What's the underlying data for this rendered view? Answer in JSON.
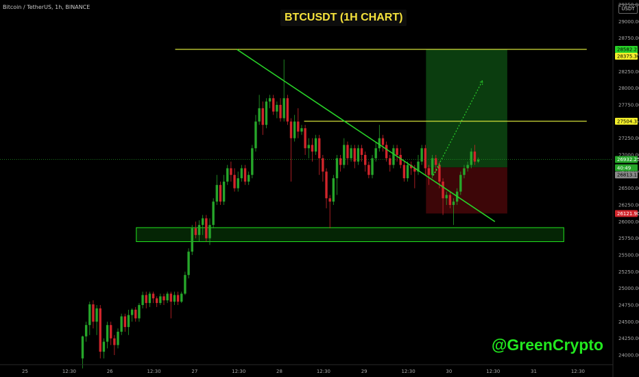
{
  "symbol_line": "Bitcoin / TetherUS, 1h, BINANCE",
  "title": "BTCUSDT (1H CHART)",
  "watermark": "@GreenCrypto",
  "currency": "USDT",
  "colors": {
    "up": "#26a62a",
    "down": "#d1252b",
    "trendline": "#28d228",
    "level": "#d6e23a",
    "zone": "#22e81f",
    "target_box": "#0b3d0f",
    "stop_box": "#3d0608",
    "projection": "#2bd72b"
  },
  "chart_data": {
    "type": "candlestick",
    "title": "BTCUSDT (1H CHART)",
    "y_axis": {
      "min": 23850,
      "max": 29250,
      "ticks": [
        24000,
        24250,
        24500,
        24750,
        25000,
        25250,
        25500,
        25750,
        26000,
        26250,
        26500,
        26750,
        27000,
        27250,
        27500,
        27750,
        28000,
        28250,
        28500,
        28750,
        29000,
        29250
      ],
      "tick_labels": [
        "24000.00",
        "24250.00",
        "24500.00",
        "24750.00",
        "25000.00",
        "25250.00",
        "25500.00",
        "25750.00",
        "26000.00",
        "26250.00",
        "26500.00",
        "26750.00",
        "27000.00",
        "27250.00",
        "27500.00",
        "27750.00",
        "28000.00",
        "28250.00",
        "28500.00",
        "28750.00",
        "29000.00",
        "29250.00"
      ]
    },
    "x_axis": {
      "min_hour": -12,
      "max_hour": 159,
      "ticks": [
        {
          "hour": 0,
          "label": "25"
        },
        {
          "hour": 12.5,
          "label": "12:30"
        },
        {
          "hour": 24,
          "label": "26"
        },
        {
          "hour": 36.5,
          "label": "12:30"
        },
        {
          "hour": 48,
          "label": "27"
        },
        {
          "hour": 60.5,
          "label": "12:30"
        },
        {
          "hour": 72,
          "label": "28"
        },
        {
          "hour": 84.5,
          "label": "12:30"
        },
        {
          "hour": 96,
          "label": "29"
        },
        {
          "hour": 108.5,
          "label": "12:30"
        },
        {
          "hour": 120,
          "label": "30"
        },
        {
          "hour": 132.5,
          "label": "12:30"
        },
        {
          "hour": 144,
          "label": "31"
        },
        {
          "hour": 156.5,
          "label": "12:30"
        }
      ]
    },
    "price_tags": [
      {
        "label": "28582.21",
        "price": 28582.21,
        "bg": "#28d228",
        "fg": "#000000"
      },
      {
        "label": "28375.30",
        "price": 28480,
        "bg": "#f3ef2b",
        "fg": "#000000"
      },
      {
        "label": "27504.35",
        "price": 27504.35,
        "bg": "#f3ef2b",
        "fg": "#000000"
      },
      {
        "label": "26932.25",
        "price": 26932.25,
        "bg": "#26a62a",
        "fg": "#ffffff"
      },
      {
        "label": "40:49",
        "price": 26807,
        "bg": "#26a62a",
        "fg": "#ffffff"
      },
      {
        "label": "26813.13",
        "price": 26700,
        "bg": "#8a8a8a",
        "fg": "#000000"
      },
      {
        "label": "26121.90",
        "price": 26121.9,
        "bg": "#d1252b",
        "fg": "#ffffff"
      }
    ],
    "levels": [
      {
        "price": 28582.21,
        "from_hour": 42.5,
        "to_hour": 159
      },
      {
        "price": 27504.35,
        "from_hour": 79,
        "to_hour": 159
      }
    ],
    "current_price": 26932.25,
    "trendline": {
      "from": {
        "hour": 60,
        "price": 28580
      },
      "to": {
        "hour": 133,
        "price": 26000
      }
    },
    "support_zone": {
      "from_hour": 31.5,
      "to_hour": 152.5,
      "low": 25700,
      "high": 25910
    },
    "target_box": {
      "from_hour": 113.5,
      "to_hour": 136.5,
      "low": 26813.13,
      "high": 28582.21
    },
    "stop_box": {
      "from_hour": 113.5,
      "to_hour": 136.5,
      "low": 26121.9,
      "high": 26813.13
    },
    "projection": {
      "from": {
        "hour": 115.5,
        "price": 26690
      },
      "via": {
        "hour": 117.5,
        "price": 26850
      },
      "to": {
        "hour": 129.5,
        "price": 28115
      }
    },
    "candles": [
      [
        16.3,
        23950,
        24280,
        23800,
        24290
      ],
      [
        17.3,
        24280,
        24450,
        24200,
        24500
      ],
      [
        18.3,
        24450,
        24760,
        24300,
        24800
      ],
      [
        19.3,
        24760,
        24500,
        24400,
        24820
      ],
      [
        20.3,
        24500,
        24700,
        24300,
        24750
      ],
      [
        21.3,
        24700,
        24050,
        23950,
        24750
      ],
      [
        22.3,
        24050,
        24200,
        23950,
        24250
      ],
      [
        23.3,
        24200,
        24450,
        24100,
        24500
      ],
      [
        24.3,
        24450,
        24250,
        24150,
        24500
      ],
      [
        25.3,
        24250,
        24150,
        24000,
        24300
      ],
      [
        26.3,
        24150,
        24350,
        24100,
        24400
      ],
      [
        27.3,
        24350,
        24580,
        24300,
        24620
      ],
      [
        28.3,
        24580,
        24420,
        24350,
        24620
      ],
      [
        29.3,
        24420,
        24600,
        24300,
        24680
      ],
      [
        30.3,
        24600,
        24680,
        24500,
        24700
      ],
      [
        31.3,
        24680,
        24550,
        24500,
        24720
      ],
      [
        32.3,
        24550,
        24750,
        24500,
        24780
      ],
      [
        33.3,
        24750,
        24900,
        24700,
        24950
      ],
      [
        34.3,
        24900,
        24780,
        24700,
        24950
      ],
      [
        35.3,
        24780,
        24920,
        24720,
        24950
      ],
      [
        36.3,
        24920,
        24850,
        24780,
        24950
      ],
      [
        37.3,
        24850,
        24780,
        24720,
        24880
      ],
      [
        38.3,
        24780,
        24880,
        24750,
        24920
      ],
      [
        39.3,
        24880,
        24820,
        24750,
        24920
      ],
      [
        40.3,
        24820,
        24920,
        24780,
        24950
      ],
      [
        41.3,
        24920,
        24800,
        24550,
        24950
      ],
      [
        42.3,
        24800,
        24900,
        24750,
        24950
      ],
      [
        43.3,
        24900,
        24800,
        24750,
        24950
      ],
      [
        44.3,
        24800,
        24920,
        24780,
        24950
      ],
      [
        45.3,
        24920,
        25200,
        24900,
        25250
      ],
      [
        46.3,
        25200,
        25550,
        25150,
        25600
      ],
      [
        47.3,
        25550,
        25900,
        25500,
        25950
      ],
      [
        48.3,
        25900,
        25800,
        25750,
        26000
      ],
      [
        49.3,
        25800,
        25950,
        25700,
        26020
      ],
      [
        50.3,
        25950,
        26050,
        25800,
        26100
      ],
      [
        51.3,
        26050,
        25750,
        25700,
        26100
      ],
      [
        52.3,
        25750,
        25950,
        25650,
        26050
      ],
      [
        53.3,
        25950,
        26300,
        25900,
        26350
      ],
      [
        54.3,
        26300,
        26550,
        26250,
        26700
      ],
      [
        55.3,
        26550,
        26300,
        26250,
        26600
      ],
      [
        56.3,
        26300,
        26600,
        26250,
        26700
      ],
      [
        57.3,
        26600,
        26800,
        26550,
        26850
      ],
      [
        58.3,
        26800,
        26700,
        26600,
        26900
      ],
      [
        59.3,
        26700,
        26500,
        26450,
        26800
      ],
      [
        60.3,
        26500,
        26650,
        26450,
        26750
      ],
      [
        61.3,
        26650,
        26800,
        26600,
        26850
      ],
      [
        62.3,
        26800,
        26600,
        26550,
        26850
      ],
      [
        63.3,
        26600,
        26700,
        26550,
        26750
      ],
      [
        64.3,
        26700,
        27100,
        26650,
        27150
      ],
      [
        65.3,
        27100,
        27500,
        27050,
        27600
      ],
      [
        66.3,
        27500,
        27700,
        27450,
        27900
      ],
      [
        67.3,
        27700,
        27450,
        27300,
        27800
      ],
      [
        68.3,
        27450,
        27800,
        27400,
        27850
      ],
      [
        69.3,
        27800,
        27850,
        27700,
        27900
      ],
      [
        70.3,
        27850,
        27650,
        27600,
        27900
      ],
      [
        71.3,
        27650,
        27750,
        27550,
        27800
      ],
      [
        72.3,
        27750,
        27550,
        27500,
        27850
      ],
      [
        73.3,
        27550,
        27850,
        27500,
        28430
      ],
      [
        74.3,
        27850,
        27500,
        27450,
        27900
      ],
      [
        75.3,
        27500,
        27250,
        26600,
        27550
      ],
      [
        76.3,
        27250,
        27500,
        27200,
        27600
      ],
      [
        77.3,
        27500,
        27350,
        27250,
        27700
      ],
      [
        78.3,
        27350,
        27400,
        27300,
        27450
      ],
      [
        79.3,
        27400,
        27100,
        27000,
        27450
      ],
      [
        80.3,
        27100,
        27150,
        26950,
        27250
      ],
      [
        81.3,
        27150,
        27050,
        26900,
        27250
      ],
      [
        82.3,
        27050,
        27250,
        27000,
        27300
      ],
      [
        83.3,
        27250,
        26950,
        26700,
        27300
      ],
      [
        84.3,
        26950,
        26750,
        26600,
        27000
      ],
      [
        85.3,
        26750,
        26350,
        26200,
        26800
      ],
      [
        86.3,
        26350,
        26300,
        25900,
        26400
      ],
      [
        87.3,
        26300,
        26650,
        26250,
        26700
      ],
      [
        88.3,
        26650,
        26950,
        26400,
        27000
      ],
      [
        89.3,
        26950,
        26850,
        26750,
        27000
      ],
      [
        90.3,
        26850,
        27150,
        26800,
        27250
      ],
      [
        91.3,
        27150,
        26950,
        26850,
        27200
      ],
      [
        92.3,
        26950,
        27100,
        26900,
        27150
      ],
      [
        93.3,
        27100,
        26900,
        26800,
        27150
      ],
      [
        94.3,
        26900,
        27100,
        26850,
        27150
      ],
      [
        95.3,
        27100,
        27000,
        26900,
        27150
      ],
      [
        96.3,
        27000,
        26850,
        26750,
        27050
      ],
      [
        97.3,
        26850,
        26700,
        26650,
        26900
      ],
      [
        98.3,
        26700,
        26950,
        26650,
        27000
      ],
      [
        99.3,
        26950,
        27100,
        26900,
        27200
      ],
      [
        100.3,
        27100,
        27250,
        27050,
        27450
      ],
      [
        101.3,
        27250,
        27150,
        27050,
        27300
      ],
      [
        102.3,
        27150,
        26950,
        26900,
        27200
      ],
      [
        103.3,
        26950,
        26850,
        26750,
        27000
      ],
      [
        104.3,
        26850,
        27100,
        26800,
        27150
      ],
      [
        105.3,
        27100,
        27000,
        26900,
        27150
      ],
      [
        106.3,
        27000,
        26850,
        26800,
        27100
      ],
      [
        107.3,
        26850,
        26650,
        26600,
        26900
      ],
      [
        108.3,
        26650,
        26850,
        26600,
        26900
      ],
      [
        109.3,
        26850,
        26800,
        26700,
        26900
      ],
      [
        110.3,
        26800,
        26750,
        26500,
        26850
      ],
      [
        111.3,
        26750,
        26900,
        26700,
        27000
      ],
      [
        112.3,
        26900,
        27100,
        26850,
        27150
      ],
      [
        113.3,
        27100,
        26800,
        26700,
        27150
      ],
      [
        114.3,
        26800,
        26700,
        26550,
        26850
      ],
      [
        115.3,
        26700,
        26950,
        26650,
        27000
      ],
      [
        116.3,
        26950,
        26850,
        26750,
        27000
      ],
      [
        117.3,
        26850,
        26600,
        26500,
        26900
      ],
      [
        118.3,
        26600,
        26350,
        26100,
        26650
      ],
      [
        119.3,
        26350,
        26400,
        26250,
        26450
      ],
      [
        120.3,
        26400,
        26250,
        26200,
        26450
      ],
      [
        121.3,
        26250,
        26300,
        25950,
        26350
      ],
      [
        122.3,
        26300,
        26450,
        26250,
        26500
      ],
      [
        123.3,
        26450,
        26700,
        26400,
        26750
      ],
      [
        124.3,
        26700,
        26800,
        26650,
        26850
      ],
      [
        125.3,
        26800,
        26850,
        26750,
        26900
      ],
      [
        126.3,
        26850,
        27050,
        26800,
        27100
      ],
      [
        127.3,
        27050,
        26900,
        26850,
        27150
      ],
      [
        128.3,
        26900,
        26930,
        26880,
        26960
      ]
    ]
  }
}
